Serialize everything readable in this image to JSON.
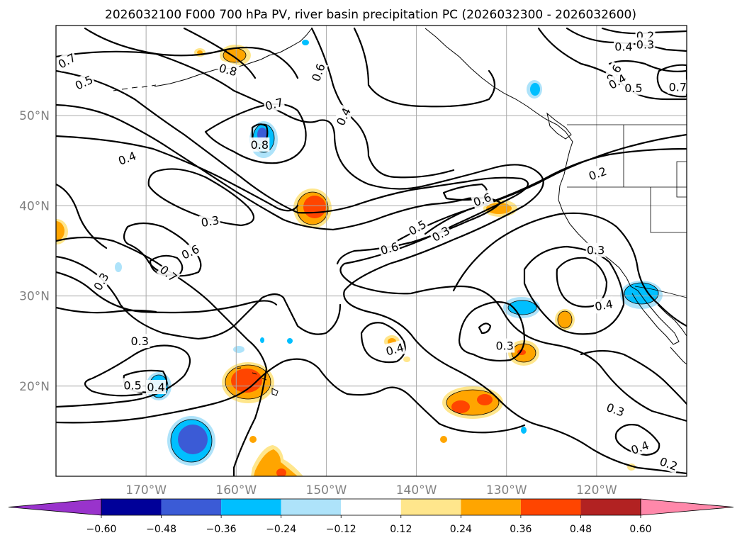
{
  "title": "2026032100 F000 700 hPa PV, river basin precipitation PC (2026032300 - 2026032600)",
  "map": {
    "lon_range": [
      -180,
      -110
    ],
    "lat_range": [
      10,
      60
    ],
    "lat_ticks": [
      {
        "value": 20,
        "label": "20°N"
      },
      {
        "value": 30,
        "label": "30°N"
      },
      {
        "value": 40,
        "label": "40°N"
      },
      {
        "value": 50,
        "label": "50°N"
      }
    ],
    "lon_ticks": [
      {
        "value": -170,
        "label": "170°W"
      },
      {
        "value": -160,
        "label": "160°W"
      },
      {
        "value": -150,
        "label": "150°W"
      },
      {
        "value": -140,
        "label": "140°W"
      },
      {
        "value": -130,
        "label": "130°W"
      },
      {
        "value": -120,
        "label": "120°W"
      }
    ],
    "contour_labels": [
      {
        "text": "0.7",
        "lon": -178.8,
        "lat": 56.1,
        "angle": 30
      },
      {
        "text": "0.5",
        "lon": -176.9,
        "lat": 53.7,
        "angle": 25
      },
      {
        "text": "0.8",
        "lon": -160.9,
        "lat": 55.1,
        "angle": -15
      },
      {
        "text": "0.6",
        "lon": -150.9,
        "lat": 54.8,
        "angle": 70
      },
      {
        "text": "0.4",
        "lon": -148.1,
        "lat": 49.9,
        "angle": 65
      },
      {
        "text": "0.7",
        "lon": -155.8,
        "lat": 51.3,
        "angle": 15
      },
      {
        "text": "0.8",
        "lon": -157.4,
        "lat": 46.8,
        "angle": 0
      },
      {
        "text": "0.4",
        "lon": -172.1,
        "lat": 45.3,
        "angle": 20
      },
      {
        "text": "0.3",
        "lon": -162.9,
        "lat": 38.3,
        "angle": 10
      },
      {
        "text": "0.6",
        "lon": -165.1,
        "lat": 34.9,
        "angle": 25
      },
      {
        "text": "0.7",
        "lon": -167.5,
        "lat": 32.5,
        "angle": -40
      },
      {
        "text": "0.3",
        "lon": -175.0,
        "lat": 31.6,
        "angle": 60
      },
      {
        "text": "0.3",
        "lon": -170.7,
        "lat": 25.0,
        "angle": 0
      },
      {
        "text": "0.5",
        "lon": -171.5,
        "lat": 20.1,
        "angle": 0
      },
      {
        "text": "0.4",
        "lon": -168.9,
        "lat": 19.9,
        "angle": 0
      },
      {
        "text": "0.4",
        "lon": -142.4,
        "lat": 24.1,
        "angle": 15
      },
      {
        "text": "0.6",
        "lon": -143.0,
        "lat": 35.3,
        "angle": 15
      },
      {
        "text": "0.5",
        "lon": -139.9,
        "lat": 37.6,
        "angle": 30
      },
      {
        "text": "0.3",
        "lon": -137.3,
        "lat": 36.9,
        "angle": 30
      },
      {
        "text": "0.6",
        "lon": -132.7,
        "lat": 40.7,
        "angle": 20
      },
      {
        "text": "0.2",
        "lon": -119.9,
        "lat": 43.6,
        "angle": 20
      },
      {
        "text": "0.3",
        "lon": -120.1,
        "lat": 35.1,
        "angle": 0
      },
      {
        "text": "0.4",
        "lon": -119.2,
        "lat": 29.0,
        "angle": 10
      },
      {
        "text": "0.3",
        "lon": -130.2,
        "lat": 24.5,
        "angle": 0
      },
      {
        "text": "0.3",
        "lon": -117.9,
        "lat": 17.4,
        "angle": -20
      },
      {
        "text": "0.4",
        "lon": -115.2,
        "lat": 13.2,
        "angle": 20
      },
      {
        "text": "0.2",
        "lon": -112.0,
        "lat": 11.4,
        "angle": -20
      },
      {
        "text": "0.2",
        "lon": -114.6,
        "lat": 58.9,
        "angle": 0
      },
      {
        "text": "0.4",
        "lon": -117.0,
        "lat": 57.7,
        "angle": 0
      },
      {
        "text": "0.3",
        "lon": -114.6,
        "lat": 57.9,
        "angle": 0
      },
      {
        "text": "0.6",
        "lon": -118.1,
        "lat": 54.7,
        "angle": 60
      },
      {
        "text": "0.4",
        "lon": -117.7,
        "lat": 53.8,
        "angle": 30
      },
      {
        "text": "0.5",
        "lon": -115.9,
        "lat": 53.1,
        "angle": 0
      },
      {
        "text": "0.7",
        "lon": -111.0,
        "lat": 53.2,
        "angle": 0
      }
    ]
  },
  "colorbar": {
    "ticks": [
      "−0.60",
      "−0.48",
      "−0.36",
      "−0.24",
      "−0.12",
      "0.12",
      "0.24",
      "0.36",
      "0.48",
      "0.60"
    ],
    "colors": [
      "#9933cc",
      "#000099",
      "#3b5bd6",
      "#00bfff",
      "#aee3fa",
      "#ffffff",
      "#ffe68c",
      "#ffa500",
      "#ff4500",
      "#b22222",
      "#ff88aa"
    ]
  }
}
